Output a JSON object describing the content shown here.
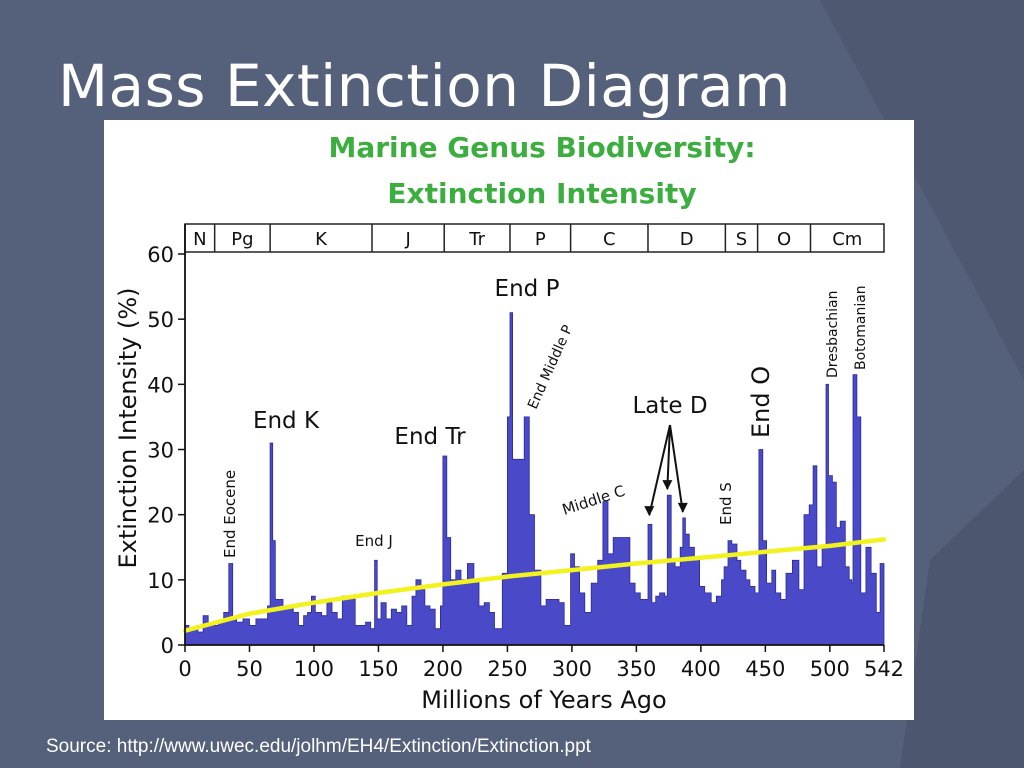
{
  "slide": {
    "title": "Mass Extinction Diagram",
    "source": "Source: http://www.uwec.edu/jolhm/EH4/Extinction/Extinction.ppt"
  },
  "colors": {
    "background": "#55607a",
    "title_green": "#3cae3f",
    "bars": "#4a4ac8",
    "bar_edge": "#2a2a9a",
    "trend": "#f2f21e"
  },
  "chart_data": {
    "type": "area",
    "title": "Marine Genus Biodiversity:",
    "subtitle": "Extinction Intensity",
    "xlabel": "Millions of Years Ago",
    "ylabel": "Extinction Intensity (%)",
    "xlim": [
      0,
      542
    ],
    "ylim": [
      0,
      60
    ],
    "xticks": [
      "0",
      "50",
      "100",
      "150",
      "200",
      "250",
      "300",
      "350",
      "400",
      "450",
      "500",
      "542"
    ],
    "xtick_values": [
      0,
      50,
      100,
      150,
      200,
      250,
      300,
      350,
      400,
      450,
      500,
      542
    ],
    "yticks": [
      "0",
      "10",
      "20",
      "30",
      "40",
      "50",
      "60"
    ],
    "ytick_values": [
      0,
      10,
      20,
      30,
      40,
      50,
      60
    ],
    "periods": [
      {
        "label": "N",
        "start": 0,
        "end": 23
      },
      {
        "label": "Pg",
        "start": 23,
        "end": 66
      },
      {
        "label": "K",
        "start": 66,
        "end": 145
      },
      {
        "label": "J",
        "start": 145,
        "end": 201
      },
      {
        "label": "Tr",
        "start": 201,
        "end": 252
      },
      {
        "label": "P",
        "start": 252,
        "end": 299
      },
      {
        "label": "C",
        "start": 299,
        "end": 359
      },
      {
        "label": "D",
        "start": 359,
        "end": 419
      },
      {
        "label": "S",
        "start": 419,
        "end": 444
      },
      {
        "label": "O",
        "start": 444,
        "end": 485
      },
      {
        "label": "Cm",
        "start": 485,
        "end": 542
      }
    ],
    "series": [
      {
        "values": [
          [
            0,
            3
          ],
          [
            3,
            2.5
          ],
          [
            6,
            2.5
          ],
          [
            10,
            2
          ],
          [
            14,
            4.5
          ],
          [
            18,
            3
          ],
          [
            22,
            3
          ],
          [
            26,
            3.5
          ],
          [
            30,
            5
          ],
          [
            34,
            12.5
          ],
          [
            37,
            4
          ],
          [
            40,
            3.5
          ],
          [
            45,
            4
          ],
          [
            50,
            3
          ],
          [
            55,
            4
          ],
          [
            60,
            4
          ],
          [
            64,
            6
          ],
          [
            66,
            31
          ],
          [
            68,
            16
          ],
          [
            70,
            7
          ],
          [
            76,
            6
          ],
          [
            80,
            6
          ],
          [
            84,
            5
          ],
          [
            88,
            3
          ],
          [
            92,
            4.5
          ],
          [
            95,
            5
          ],
          [
            98,
            7.5
          ],
          [
            101,
            5
          ],
          [
            106,
            4.5
          ],
          [
            110,
            6.5
          ],
          [
            114,
            5
          ],
          [
            118,
            4
          ],
          [
            122,
            7.5
          ],
          [
            127,
            7.5
          ],
          [
            132,
            3
          ],
          [
            136,
            3
          ],
          [
            140,
            3.5
          ],
          [
            144,
            2.5
          ],
          [
            147,
            13
          ],
          [
            149,
            4
          ],
          [
            152,
            6.5
          ],
          [
            156,
            4
          ],
          [
            160,
            5.5
          ],
          [
            164,
            5
          ],
          [
            168,
            6
          ],
          [
            172,
            3
          ],
          [
            176,
            7.5
          ],
          [
            179,
            10
          ],
          [
            183,
            8.5
          ],
          [
            186,
            6
          ],
          [
            190,
            5.5
          ],
          [
            194,
            2.5
          ],
          [
            198,
            6
          ],
          [
            200,
            29
          ],
          [
            203,
            16.5
          ],
          [
            206,
            10
          ],
          [
            210,
            11.5
          ],
          [
            214,
            10
          ],
          [
            219,
            12.5
          ],
          [
            224,
            10
          ],
          [
            228,
            6
          ],
          [
            232,
            6.5
          ],
          [
            236,
            5
          ],
          [
            240,
            2.5
          ],
          [
            246,
            11
          ],
          [
            250,
            35
          ],
          [
            252,
            51
          ],
          [
            254,
            28.5
          ],
          [
            258,
            28.5
          ],
          [
            263,
            35
          ],
          [
            267,
            20
          ],
          [
            271,
            11.5
          ],
          [
            276,
            6
          ],
          [
            280,
            7
          ],
          [
            285,
            7
          ],
          [
            290,
            6.5
          ],
          [
            294,
            3
          ],
          [
            299,
            14
          ],
          [
            302,
            12
          ],
          [
            306,
            8
          ],
          [
            310,
            5
          ],
          [
            315,
            9.5
          ],
          [
            320,
            13
          ],
          [
            324,
            22
          ],
          [
            328,
            14
          ],
          [
            332,
            16.5
          ],
          [
            336,
            16.5
          ],
          [
            341,
            16.5
          ],
          [
            345,
            9.5
          ],
          [
            349,
            8
          ],
          [
            353,
            7
          ],
          [
            359,
            18.5
          ],
          [
            362,
            6.5
          ],
          [
            365,
            7.5
          ],
          [
            368,
            8
          ],
          [
            372,
            7.5
          ],
          [
            374,
            23
          ],
          [
            377,
            13
          ],
          [
            380,
            12
          ],
          [
            384,
            15
          ],
          [
            386,
            19.5
          ],
          [
            388,
            17
          ],
          [
            391,
            15
          ],
          [
            395,
            13.5
          ],
          [
            399,
            9
          ],
          [
            403,
            8
          ],
          [
            408,
            6.5
          ],
          [
            412,
            7.5
          ],
          [
            416,
            10
          ],
          [
            418,
            12
          ],
          [
            421,
            16
          ],
          [
            424,
            15.5
          ],
          [
            428,
            13
          ],
          [
            431,
            11.5
          ],
          [
            435,
            10
          ],
          [
            438,
            9
          ],
          [
            442,
            8
          ],
          [
            445,
            30
          ],
          [
            448,
            16
          ],
          [
            451,
            9.5
          ],
          [
            455,
            11.5
          ],
          [
            458,
            8
          ],
          [
            462,
            7
          ],
          [
            466,
            11
          ],
          [
            471,
            13
          ],
          [
            476,
            8.5
          ],
          [
            480,
            20
          ],
          [
            484,
            21.5
          ],
          [
            487,
            27.5
          ],
          [
            490,
            12
          ],
          [
            494,
            15
          ],
          [
            497,
            40
          ],
          [
            499,
            26
          ],
          [
            502,
            25
          ],
          [
            505,
            18
          ],
          [
            508,
            19
          ],
          [
            512,
            12
          ],
          [
            515,
            10
          ],
          [
            517,
            9.5
          ],
          [
            518,
            41.5
          ],
          [
            521,
            35
          ],
          [
            524,
            8
          ],
          [
            528,
            15
          ],
          [
            532,
            11
          ],
          [
            536,
            5
          ],
          [
            539,
            12.5
          ],
          [
            542,
            12
          ]
        ]
      },
      {
        "type": "line",
        "values": [
          [
            0,
            2.2
          ],
          [
            50,
            4.8
          ],
          [
            100,
            6.5
          ],
          [
            150,
            8
          ],
          [
            200,
            9.3
          ],
          [
            250,
            10.5
          ],
          [
            300,
            11.5
          ],
          [
            350,
            12.5
          ],
          [
            400,
            13.4
          ],
          [
            450,
            14.3
          ],
          [
            500,
            15.2
          ],
          [
            542,
            16.2
          ]
        ]
      }
    ],
    "annotations": [
      {
        "label": "End Eocene",
        "x": 36,
        "y": 13
      },
      {
        "label": "End K",
        "x": 66,
        "y": 31
      },
      {
        "label": "End J",
        "x": 145,
        "y": 13
      },
      {
        "label": "End Tr",
        "x": 201,
        "y": 29
      },
      {
        "label": "End P",
        "x": 252,
        "y": 51
      },
      {
        "label": "End Middle P",
        "x": 263,
        "y": 35
      },
      {
        "label": "Middle C",
        "x": 324,
        "y": 22
      },
      {
        "label": "Late D",
        "x": 374,
        "y": 23,
        "targets": [
          [
            360,
            19
          ],
          [
            374,
            23
          ],
          [
            386,
            19.5
          ]
        ]
      },
      {
        "label": "End S",
        "x": 421,
        "y": 16
      },
      {
        "label": "End O",
        "x": 445,
        "y": 30
      },
      {
        "label": "Dresbachian",
        "x": 497,
        "y": 40
      },
      {
        "label": "Botomanian",
        "x": 518,
        "y": 41.5
      }
    ]
  }
}
